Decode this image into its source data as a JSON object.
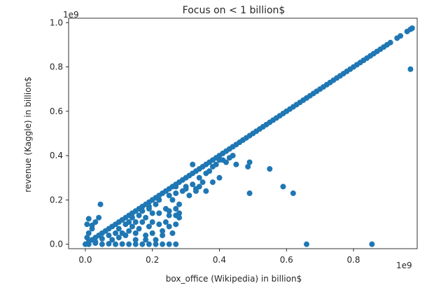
{
  "chart_data": {
    "type": "scatter",
    "title": "Focus on < 1 billion$",
    "xlabel": "box_office (Wikipedia) in billion$",
    "ylabel": "revenue (Kaggle) in billion$",
    "x_offset_label": "1e9",
    "y_offset_label": "1e9",
    "xlim": [
      -0.05,
      0.99
    ],
    "ylim": [
      -0.02,
      1.02
    ],
    "x_ticks": [
      0.0,
      0.2,
      0.4,
      0.6,
      0.8
    ],
    "x_tick_labels": [
      "0.0",
      "0.2",
      "0.4",
      "0.6",
      "0.8"
    ],
    "y_ticks": [
      0.0,
      0.2,
      0.4,
      0.6,
      0.8,
      1.0
    ],
    "y_tick_labels": [
      "0.0",
      "0.2",
      "0.4",
      "0.6",
      "0.8",
      "1.0"
    ],
    "grid": false,
    "marker_color": "#1f77b4",
    "series": [
      {
        "points": [
          [
            0.0,
            0.0
          ],
          [
            0.01,
            0.01
          ],
          [
            0.02,
            0.02
          ],
          [
            0.03,
            0.03
          ],
          [
            0.04,
            0.04
          ],
          [
            0.05,
            0.05
          ],
          [
            0.06,
            0.06
          ],
          [
            0.07,
            0.07
          ],
          [
            0.08,
            0.08
          ],
          [
            0.09,
            0.09
          ],
          [
            0.1,
            0.1
          ],
          [
            0.11,
            0.11
          ],
          [
            0.12,
            0.12
          ],
          [
            0.13,
            0.13
          ],
          [
            0.14,
            0.14
          ],
          [
            0.15,
            0.15
          ],
          [
            0.16,
            0.16
          ],
          [
            0.17,
            0.17
          ],
          [
            0.18,
            0.18
          ],
          [
            0.19,
            0.19
          ],
          [
            0.2,
            0.2
          ],
          [
            0.21,
            0.21
          ],
          [
            0.22,
            0.22
          ],
          [
            0.23,
            0.23
          ],
          [
            0.24,
            0.24
          ],
          [
            0.25,
            0.25
          ],
          [
            0.26,
            0.26
          ],
          [
            0.27,
            0.27
          ],
          [
            0.28,
            0.28
          ],
          [
            0.29,
            0.29
          ],
          [
            0.3,
            0.3
          ],
          [
            0.31,
            0.31
          ],
          [
            0.32,
            0.32
          ],
          [
            0.33,
            0.33
          ],
          [
            0.34,
            0.34
          ],
          [
            0.35,
            0.35
          ],
          [
            0.36,
            0.36
          ],
          [
            0.37,
            0.37
          ],
          [
            0.38,
            0.38
          ],
          [
            0.39,
            0.39
          ],
          [
            0.4,
            0.4
          ],
          [
            0.41,
            0.41
          ],
          [
            0.42,
            0.42
          ],
          [
            0.43,
            0.43
          ],
          [
            0.44,
            0.44
          ],
          [
            0.45,
            0.45
          ],
          [
            0.46,
            0.46
          ],
          [
            0.47,
            0.47
          ],
          [
            0.48,
            0.48
          ],
          [
            0.49,
            0.49
          ],
          [
            0.5,
            0.5
          ],
          [
            0.51,
            0.51
          ],
          [
            0.52,
            0.52
          ],
          [
            0.53,
            0.53
          ],
          [
            0.54,
            0.54
          ],
          [
            0.55,
            0.55
          ],
          [
            0.56,
            0.56
          ],
          [
            0.57,
            0.57
          ],
          [
            0.58,
            0.58
          ],
          [
            0.59,
            0.59
          ],
          [
            0.6,
            0.6
          ],
          [
            0.61,
            0.61
          ],
          [
            0.62,
            0.62
          ],
          [
            0.63,
            0.63
          ],
          [
            0.64,
            0.64
          ],
          [
            0.65,
            0.65
          ],
          [
            0.66,
            0.66
          ],
          [
            0.67,
            0.67
          ],
          [
            0.68,
            0.68
          ],
          [
            0.69,
            0.69
          ],
          [
            0.7,
            0.7
          ],
          [
            0.71,
            0.71
          ],
          [
            0.72,
            0.72
          ],
          [
            0.73,
            0.73
          ],
          [
            0.74,
            0.74
          ],
          [
            0.75,
            0.75
          ],
          [
            0.76,
            0.76
          ],
          [
            0.77,
            0.77
          ],
          [
            0.78,
            0.78
          ],
          [
            0.79,
            0.79
          ],
          [
            0.8,
            0.8
          ],
          [
            0.81,
            0.81
          ],
          [
            0.82,
            0.82
          ],
          [
            0.83,
            0.83
          ],
          [
            0.84,
            0.84
          ],
          [
            0.85,
            0.85
          ],
          [
            0.86,
            0.86
          ],
          [
            0.87,
            0.87
          ],
          [
            0.88,
            0.88
          ],
          [
            0.89,
            0.89
          ],
          [
            0.9,
            0.9
          ],
          [
            0.91,
            0.91
          ],
          [
            0.93,
            0.93
          ],
          [
            0.94,
            0.94
          ],
          [
            0.96,
            0.96
          ],
          [
            0.97,
            0.97
          ],
          [
            0.975,
            0.975
          ],
          [
            0.01,
            0.0
          ],
          [
            0.03,
            0.005
          ],
          [
            0.05,
            0.0
          ],
          [
            0.07,
            0.002
          ],
          [
            0.09,
            0.0
          ],
          [
            0.11,
            0.001
          ],
          [
            0.13,
            0.0
          ],
          [
            0.15,
            0.0
          ],
          [
            0.17,
            0.0
          ],
          [
            0.19,
            0.0
          ],
          [
            0.21,
            0.0
          ],
          [
            0.23,
            0.0
          ],
          [
            0.25,
            0.0
          ],
          [
            0.27,
            0.0
          ],
          [
            0.005,
            0.03
          ],
          [
            0.01,
            0.05
          ],
          [
            0.02,
            0.07
          ],
          [
            0.005,
            0.09
          ],
          [
            0.01,
            0.115
          ],
          [
            0.02,
            0.085
          ],
          [
            0.03,
            0.1
          ],
          [
            0.04,
            0.12
          ],
          [
            0.045,
            0.18
          ],
          [
            0.03,
            0.01
          ],
          [
            0.05,
            0.025
          ],
          [
            0.07,
            0.04
          ],
          [
            0.08,
            0.02
          ],
          [
            0.09,
            0.05
          ],
          [
            0.1,
            0.03
          ],
          [
            0.1,
            0.07
          ],
          [
            0.11,
            0.05
          ],
          [
            0.12,
            0.09
          ],
          [
            0.12,
            0.04
          ],
          [
            0.13,
            0.1
          ],
          [
            0.13,
            0.06
          ],
          [
            0.14,
            0.08
          ],
          [
            0.14,
            0.12
          ],
          [
            0.15,
            0.05
          ],
          [
            0.15,
            0.1
          ],
          [
            0.16,
            0.13
          ],
          [
            0.16,
            0.07
          ],
          [
            0.17,
            0.1
          ],
          [
            0.17,
            0.15
          ],
          [
            0.18,
            0.04
          ],
          [
            0.18,
            0.12
          ],
          [
            0.19,
            0.08
          ],
          [
            0.19,
            0.16
          ],
          [
            0.2,
            0.14
          ],
          [
            0.2,
            0.05
          ],
          [
            0.2,
            0.1
          ],
          [
            0.21,
            0.18
          ],
          [
            0.22,
            0.09
          ],
          [
            0.22,
            0.14
          ],
          [
            0.23,
            0.06
          ],
          [
            0.24,
            0.16
          ],
          [
            0.25,
            0.13
          ],
          [
            0.26,
            0.2
          ],
          [
            0.27,
            0.23
          ],
          [
            0.28,
            0.18
          ],
          [
            0.29,
            0.24
          ],
          [
            0.3,
            0.26
          ],
          [
            0.31,
            0.22
          ],
          [
            0.32,
            0.27
          ],
          [
            0.33,
            0.25
          ],
          [
            0.34,
            0.3
          ],
          [
            0.35,
            0.28
          ],
          [
            0.36,
            0.32
          ],
          [
            0.37,
            0.33
          ],
          [
            0.38,
            0.35
          ],
          [
            0.39,
            0.36
          ],
          [
            0.4,
            0.38
          ],
          [
            0.19,
            0.17
          ],
          [
            0.22,
            0.2
          ],
          [
            0.25,
            0.22
          ],
          [
            0.27,
            0.16
          ],
          [
            0.27,
            0.13
          ],
          [
            0.27,
            0.26
          ],
          [
            0.28,
            0.14
          ],
          [
            0.28,
            0.12
          ],
          [
            0.3,
            0.25
          ],
          [
            0.33,
            0.24
          ],
          [
            0.34,
            0.26
          ],
          [
            0.36,
            0.24
          ],
          [
            0.38,
            0.28
          ],
          [
            0.4,
            0.3
          ],
          [
            0.32,
            0.36
          ],
          [
            0.25,
            0.15
          ],
          [
            0.27,
            0.09
          ],
          [
            0.21,
            0.02
          ],
          [
            0.23,
            0.04
          ],
          [
            0.24,
            0.1
          ],
          [
            0.25,
            0.08
          ],
          [
            0.26,
            0.05
          ],
          [
            0.18,
            0.02
          ],
          [
            0.15,
            0.02
          ],
          [
            0.41,
            0.38
          ],
          [
            0.42,
            0.37
          ],
          [
            0.43,
            0.39
          ],
          [
            0.44,
            0.4
          ],
          [
            0.45,
            0.36
          ],
          [
            0.49,
            0.37
          ],
          [
            0.485,
            0.35
          ],
          [
            0.49,
            0.23
          ],
          [
            0.55,
            0.34
          ],
          [
            0.59,
            0.26
          ],
          [
            0.62,
            0.23
          ],
          [
            0.66,
            0.0
          ],
          [
            0.855,
            0.0
          ],
          [
            0.97,
            0.79
          ]
        ]
      }
    ]
  }
}
